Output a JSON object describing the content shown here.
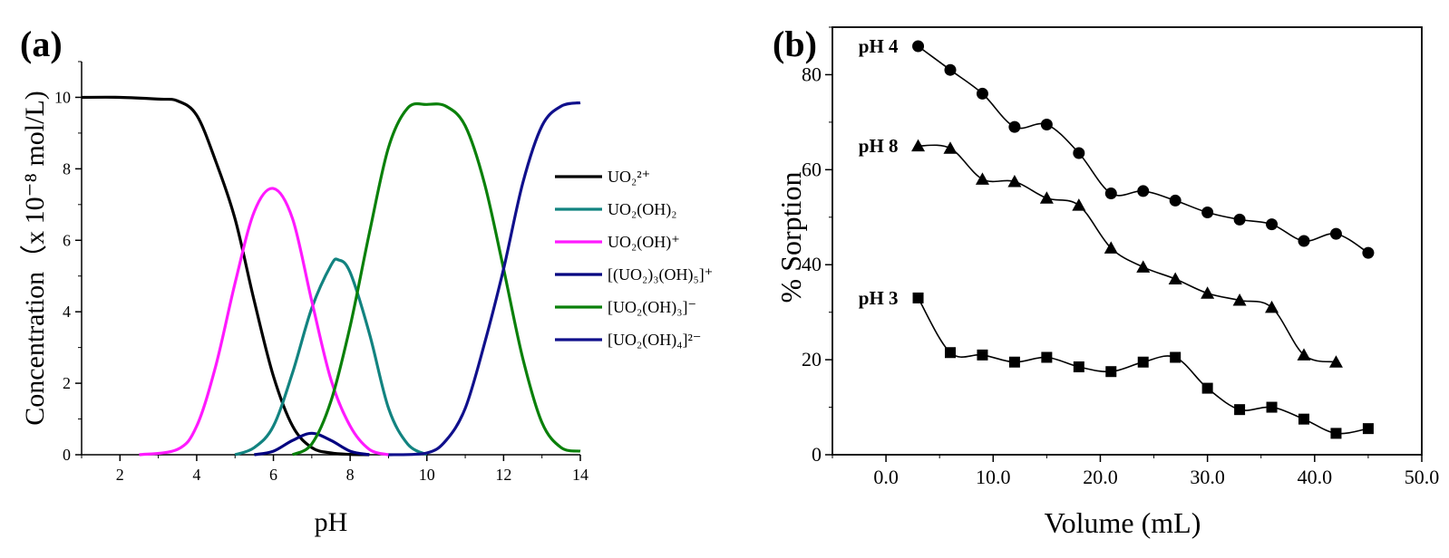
{
  "chart_data": [
    {
      "panel": "(a)",
      "type": "line",
      "xlabel": "pH",
      "ylabel": "Concentration（x 10⁻⁸ mol/L)",
      "xlim": [
        1,
        14
      ],
      "ylim": [
        0,
        11
      ],
      "xticks": [
        2,
        4,
        6,
        8,
        10,
        12,
        14
      ],
      "yticks": [
        0,
        2,
        4,
        6,
        8,
        10
      ],
      "legend_position": "right",
      "series": [
        {
          "name": "UO₂²⁺",
          "color": "#000000",
          "x": [
            1,
            2,
            3,
            3.5,
            4,
            4.5,
            5,
            5.5,
            6,
            6.5,
            7,
            7.5,
            8,
            8.5
          ],
          "y": [
            10,
            10,
            9.95,
            9.9,
            9.5,
            8.2,
            6.6,
            4.3,
            2.2,
            0.8,
            0.2,
            0.05,
            0.01,
            0
          ]
        },
        {
          "name": "UO₂(OH)₂",
          "color": "#128380",
          "x": [
            5,
            5.5,
            6,
            6.5,
            7,
            7.5,
            7.7,
            8,
            8.5,
            9,
            9.5,
            10
          ],
          "y": [
            0,
            0.2,
            0.8,
            2.3,
            4.1,
            5.3,
            5.45,
            5.1,
            3.4,
            1.3,
            0.3,
            0
          ]
        },
        {
          "name": "UO₂(OH)⁺",
          "color": "#ff1aff",
          "x": [
            2.5,
            3.5,
            4,
            4.5,
            5,
            5.5,
            6,
            6.5,
            7,
            7.5,
            8,
            8.5,
            9
          ],
          "y": [
            0,
            0.15,
            0.8,
            2.5,
            4.8,
            6.8,
            7.45,
            6.6,
            4.3,
            2.1,
            0.8,
            0.15,
            0
          ]
        },
        {
          "name": "[(UO₂)₃(OH)₅]⁺",
          "color": "#000080",
          "x": [
            5.5,
            6,
            6.5,
            7,
            7.5,
            8,
            8.5
          ],
          "y": [
            0,
            0.1,
            0.4,
            0.6,
            0.4,
            0.1,
            0
          ]
        },
        {
          "name": "[UO₂(OH)₃]⁻",
          "color": "#0a800a",
          "x": [
            6.5,
            7,
            7.5,
            8,
            8.5,
            9,
            9.5,
            10,
            10.5,
            11,
            11.5,
            12,
            12.5,
            13,
            13.5,
            14
          ],
          "y": [
            0,
            0.3,
            1.5,
            3.6,
            6.2,
            8.6,
            9.7,
            9.8,
            9.75,
            9.2,
            7.6,
            5.2,
            2.7,
            0.9,
            0.2,
            0.1
          ]
        },
        {
          "name": "[UO₂(OH)₄]²⁻",
          "color": "#10108c",
          "x": [
            9,
            10,
            10.5,
            11,
            11.5,
            12,
            12.5,
            13,
            13.5,
            14
          ],
          "y": [
            0,
            0.05,
            0.4,
            1.3,
            3.1,
            5.2,
            7.6,
            9.2,
            9.75,
            9.85
          ]
        }
      ]
    },
    {
      "panel": "(b)",
      "type": "scatter",
      "xlabel": "Volume (mL)",
      "ylabel": "% Sorption",
      "xlim": [
        -5,
        50
      ],
      "ylim": [
        0,
        90
      ],
      "xticks": [
        "0.0",
        "10.0",
        "20.0",
        "30.0",
        "40.0",
        "50.0"
      ],
      "yticks": [
        0,
        20,
        40,
        60,
        80
      ],
      "series": [
        {
          "name": "pH 4",
          "marker": "circle",
          "x": [
            3,
            6,
            9,
            12,
            15,
            18,
            21,
            24,
            27,
            30,
            33,
            36,
            39,
            42,
            45
          ],
          "y": [
            86,
            81,
            76,
            69,
            69.5,
            63.5,
            55,
            55.5,
            53.5,
            51,
            49.5,
            48.5,
            45,
            46.5,
            42.5
          ]
        },
        {
          "name": "pH 8",
          "marker": "triangle",
          "x": [
            3,
            6,
            9,
            12,
            15,
            18,
            21,
            24,
            27,
            30,
            33,
            36,
            39,
            42
          ],
          "y": [
            65,
            64.5,
            58,
            57.5,
            54,
            52.5,
            43.5,
            39.5,
            37,
            34,
            32.5,
            31,
            21,
            19.5
          ]
        },
        {
          "name": "pH 3",
          "marker": "square",
          "x": [
            3,
            6,
            9,
            12,
            15,
            18,
            21,
            24,
            27,
            30,
            33,
            36,
            39,
            42,
            45
          ],
          "y": [
            33,
            21.5,
            21,
            19.5,
            20.5,
            18.5,
            17.5,
            19.5,
            20.5,
            14,
            9.5,
            10,
            7.5,
            4.5,
            5.5
          ]
        }
      ]
    }
  ]
}
